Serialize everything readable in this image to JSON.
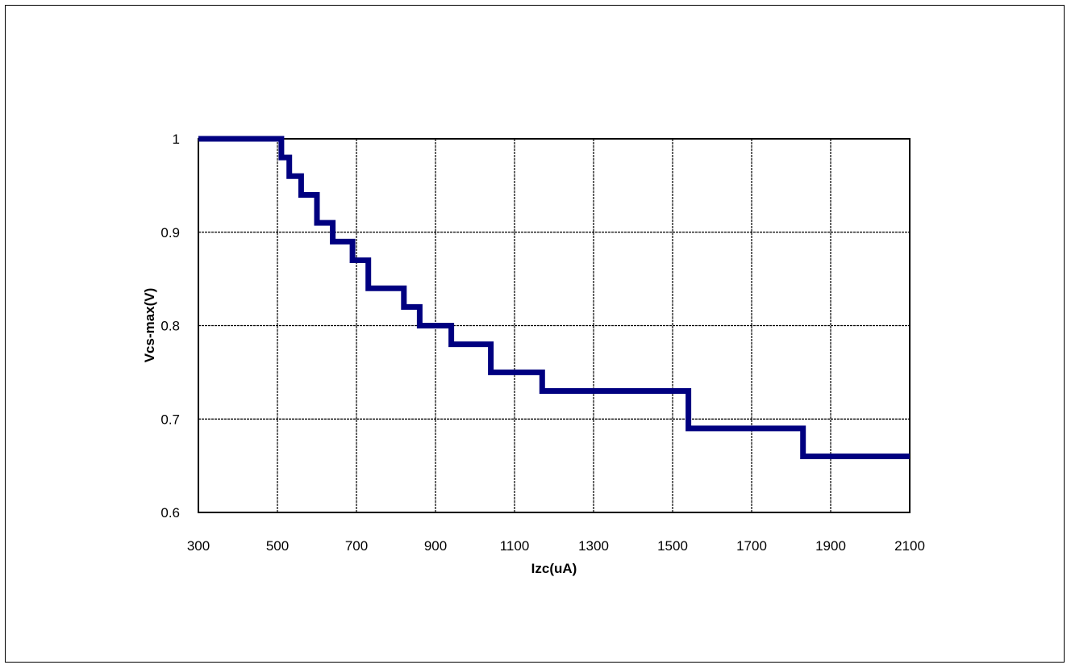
{
  "chart_data": {
    "type": "line",
    "title": "",
    "xlabel": "Izc(uA)",
    "ylabel": "Vcs-max(V)",
    "xlim": [
      300,
      2100
    ],
    "ylim": [
      0.6,
      1.0
    ],
    "x_ticks": [
      300,
      500,
      700,
      900,
      1100,
      1300,
      1500,
      1700,
      1900,
      2100
    ],
    "x_tick_labels": [
      "300",
      "500",
      "700",
      "900",
      "1100",
      "1300",
      "1500",
      "1700",
      "1900",
      "2100"
    ],
    "y_ticks": [
      0.6,
      0.7,
      0.8,
      0.9,
      1.0
    ],
    "y_tick_labels": [
      "0.6",
      "0.7",
      "0.8",
      "0.9",
      "1"
    ],
    "grid": true,
    "line_style": "step",
    "series": [
      {
        "color": "#000080",
        "x": [
          300,
          510,
          530,
          560,
          600,
          640,
          690,
          730,
          820,
          860,
          940,
          1040,
          1170,
          1540,
          1830,
          2100
        ],
        "y": [
          1.0,
          0.98,
          0.96,
          0.94,
          0.91,
          0.89,
          0.87,
          0.84,
          0.82,
          0.8,
          0.78,
          0.75,
          0.73,
          0.69,
          0.66,
          0.66
        ]
      }
    ]
  }
}
